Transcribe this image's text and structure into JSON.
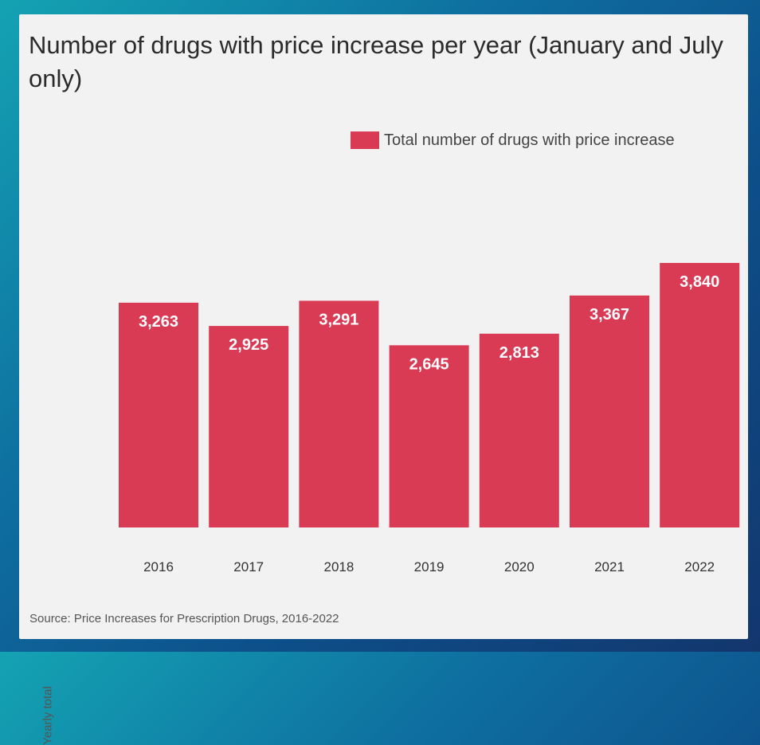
{
  "chart_data": {
    "type": "bar",
    "title": "Number of drugs with price increase per year (January and July only)",
    "ylabel": "Yearly total",
    "xlabel": "",
    "categories": [
      "2016",
      "2017",
      "2018",
      "2019",
      "2020",
      "2021",
      "2022"
    ],
    "series": [
      {
        "name": "Total number of drugs with price increase",
        "values": [
          3263,
          2925,
          3291,
          2645,
          2813,
          3367,
          3840
        ],
        "value_labels": [
          "3,263",
          "2,925",
          "3,291",
          "2,645",
          "2,813",
          "3,367",
          "3,840"
        ],
        "color": "#d93a54"
      }
    ],
    "ylim": [
      0,
      3840
    ],
    "grid": false,
    "legend_position": "top-right",
    "source": "Source: Price Increases for Prescription Drugs, 2016-2022"
  },
  "colors": {
    "bar": "#d93a54",
    "panel": "#f2f2f2",
    "text": "#2b2b2b"
  }
}
